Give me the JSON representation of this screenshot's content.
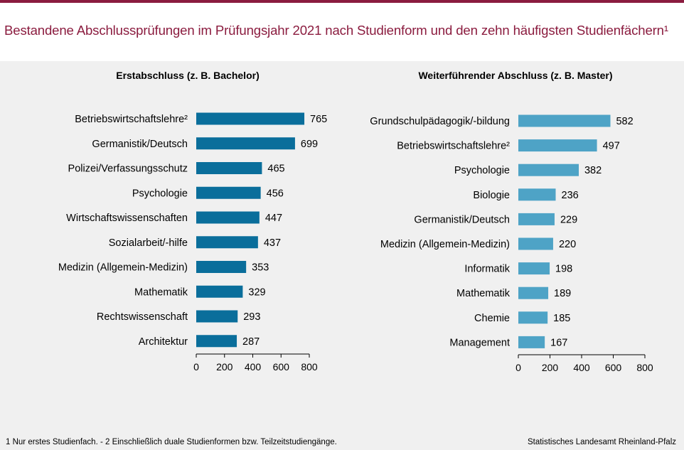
{
  "title": "Bestandene Abschlussprüfungen im Prüfungsjahr 2021 nach Studienform und den zehn häufigsten Studienfächern¹",
  "footnote": "1 Nur erstes Studienfach.  - 2 Einschließlich duale Studienformen  bzw. Teilzeitstudiengänge.",
  "source": "Statistisches Landesamt Rheinland-Pfalz",
  "colors": {
    "accent": "#8b1c3f",
    "bar_left": "#0a6e9b",
    "bar_right": "#4ea3c6"
  },
  "chart_data": [
    {
      "type": "bar",
      "orientation": "horizontal",
      "title": "Erstabschluss  (z. B. Bachelor)",
      "categories": [
        "Betriebswirtschaftslehre²",
        "Germanistik/Deutsch",
        "Polizei/Verfassungsschutz",
        "Psychologie",
        "Wirtschaftswissenschaften",
        "Sozialarbeit/-hilfe",
        "Medizin (Allgemein-Medizin)",
        "Mathematik",
        "Rechtswissenschaft",
        "Architektur"
      ],
      "values": [
        765,
        699,
        465,
        456,
        447,
        437,
        353,
        329,
        293,
        287
      ],
      "xlim": [
        0,
        800
      ],
      "xticks": [
        0,
        200,
        400,
        600,
        800
      ],
      "data_labels": true,
      "color": "#0a6e9b"
    },
    {
      "type": "bar",
      "orientation": "horizontal",
      "title": "Weiterführender Abschluss  (z. B. Master)",
      "categories": [
        "Grundschulpädagogik/-bildung",
        "Betriebswirtschaftslehre²",
        "Psychologie",
        "Biologie",
        "Germanistik/Deutsch",
        "Medizin (Allgemein-Medizin)",
        "Informatik",
        "Mathematik",
        "Chemie",
        "Management"
      ],
      "values": [
        582,
        497,
        382,
        236,
        229,
        220,
        198,
        189,
        185,
        167
      ],
      "xlim": [
        0,
        800
      ],
      "xticks": [
        0,
        200,
        400,
        600,
        800
      ],
      "data_labels": true,
      "color": "#4ea3c6"
    }
  ]
}
